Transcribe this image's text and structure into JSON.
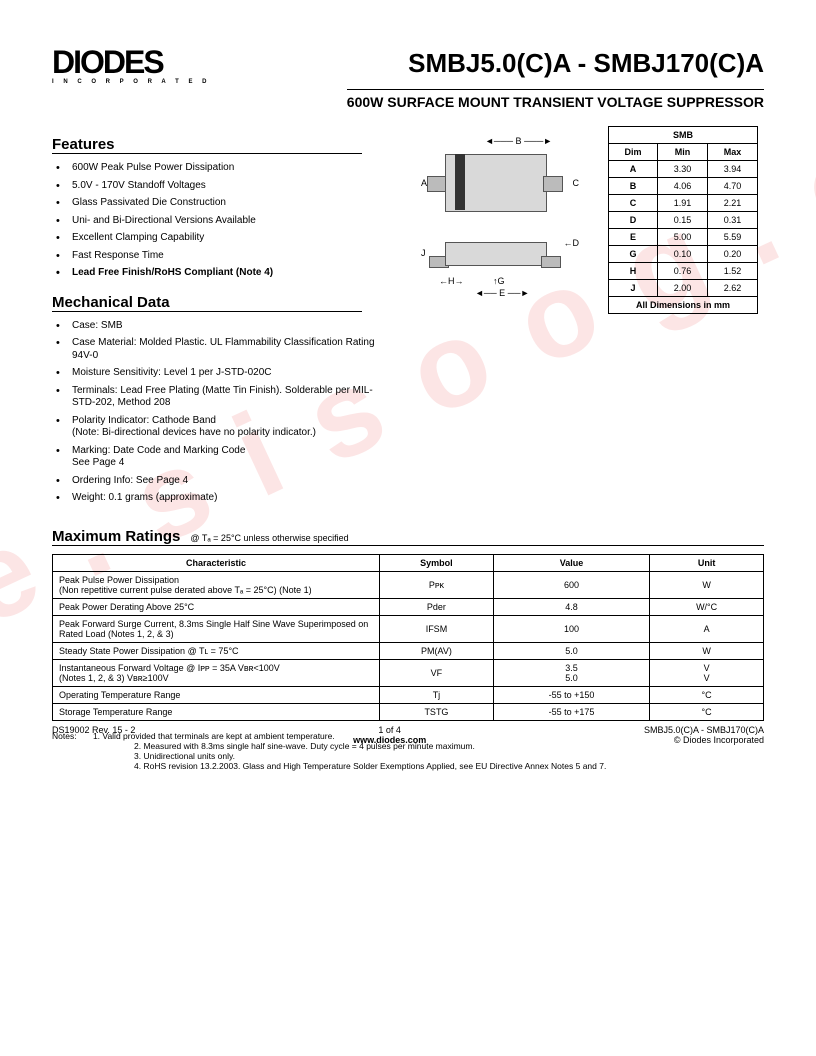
{
  "header": {
    "logo_main": "DIODES",
    "logo_sub": "I N C O R P O R A T E D",
    "part_number": "SMBJ5.0(C)A - SMBJ170(C)A",
    "subtitle": "600W SURFACE MOUNT TRANSIENT VOLTAGE SUPPRESSOR"
  },
  "features": {
    "title": "Features",
    "items": [
      "600W Peak Pulse Power Dissipation",
      "5.0V - 170V Standoff Voltages",
      "Glass Passivated Die Construction",
      "Uni- and Bi-Directional Versions Available",
      "Excellent Clamping Capability",
      "Fast Response Time",
      "Lead Free Finish/RoHS Compliant (Note 4)"
    ],
    "bold_last": true
  },
  "mechanical": {
    "title": "Mechanical Data",
    "items": [
      "Case:  SMB",
      "Case Material:  Molded Plastic. UL Flammability Classification Rating 94V-0",
      "Moisture Sensitivity:  Level 1 per J-STD-020C",
      "Terminals: Lead Free Plating (Matte Tin Finish). Solderable per MIL-STD-202, Method 208",
      "Polarity Indicator: Cathode Band\n(Note: Bi-directional devices have no polarity indicator.)",
      "Marking: Date Code and Marking Code\nSee Page 4",
      "Ordering Info: See Page 4",
      "Weight:  0.1 grams (approximate)"
    ]
  },
  "package_labels": {
    "A": "A",
    "B": "B",
    "C": "C",
    "D": "D",
    "E": "E",
    "G": "G",
    "H": "H",
    "J": "J"
  },
  "dim_table": {
    "title": "SMB",
    "headers": [
      "Dim",
      "Min",
      "Max"
    ],
    "rows": [
      [
        "A",
        "3.30",
        "3.94"
      ],
      [
        "B",
        "4.06",
        "4.70"
      ],
      [
        "C",
        "1.91",
        "2.21"
      ],
      [
        "D",
        "0.15",
        "0.31"
      ],
      [
        "E",
        "5.00",
        "5.59"
      ],
      [
        "G",
        "0.10",
        "0.20"
      ],
      [
        "H",
        "0.76",
        "1.52"
      ],
      [
        "J",
        "2.00",
        "2.62"
      ]
    ],
    "footer": "All Dimensions in mm"
  },
  "ratings": {
    "title": "Maximum Ratings",
    "condition": "@ Tₐ = 25°C unless otherwise specified",
    "headers": [
      "Characteristic",
      "Symbol",
      "Value",
      "Unit"
    ],
    "rows": [
      {
        "char": "Peak Pulse Power Dissipation\n(Non repetitive current pulse derated above Tₐ = 25°C) (Note 1)",
        "sym": "Pᴘᴋ",
        "val": "600",
        "unit": "W"
      },
      {
        "char": "Peak Power Derating Above 25°C",
        "sym": "Pₑᵣ",
        "sym_raw": "Pder",
        "val": "4.8",
        "unit": "W/°C"
      },
      {
        "char": "Peak Forward Surge Current, 8.3ms Single Half Sine Wave Superimposed on Rated Load  (Notes 1, 2, & 3)",
        "sym": "Iꜰᴍsm",
        "sym_raw": "IFSM",
        "val": "100",
        "unit": "A"
      },
      {
        "char": "Steady State Power Dissipation @ Tʟ = 75°C",
        "sym": "PM(ᴀᴠ)",
        "sym_raw": "PM(AV)",
        "val": "5.0",
        "unit": "W"
      },
      {
        "char": "Instantaneous Forward Voltage @ Iᴘᴘ = 35A      Vʙʀ<100V\n(Notes 1, 2, & 3)                                  Vʙʀ≥100V",
        "sym": "Vꜰ",
        "sym_raw": "VF",
        "val": "3.5\n5.0",
        "unit": "V\nV"
      },
      {
        "char": "Operating Temperature Range",
        "sym": "Tⱼ",
        "sym_raw": "Tj",
        "val": "-55 to +150",
        "unit": "°C"
      },
      {
        "char": "Storage Temperature Range",
        "sym": "Tꜱᴛɢ",
        "sym_raw": "TSTG",
        "val": "-55 to +175",
        "unit": "°C"
      }
    ]
  },
  "notes": {
    "label": "Notes:",
    "items": [
      "1.  Valid provided that terminals are kept at ambient temperature.",
      "2.  Measured with 8.3ms single half sine-wave.  Duty cycle = 4 pulses per minute maximum.",
      "3.  Unidirectional units only.",
      "4.  RoHS revision 13.2.2003.  Glass and High Temperature Solder Exemptions Applied, see EU Directive Annex Notes 5 and 7."
    ]
  },
  "footer": {
    "left": "DS19002 Rev. 15 - 2",
    "center_top": "1 of 4",
    "center_bottom": "www.diodes.com",
    "right_top": "SMBJ5.0(C)A - SMBJ170(C)A",
    "right_bottom": "© Diodes Incorporated"
  },
  "watermark": "i s e e . s i s o o g . c o m"
}
